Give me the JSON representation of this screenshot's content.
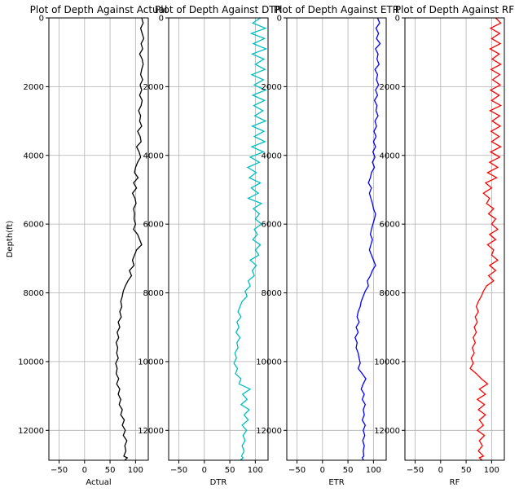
{
  "chart_data": [
    {
      "type": "line",
      "title": "Plot of Depth Against Actual",
      "xlabel": "Actual",
      "ylabel": "Depth(ft)",
      "xlim": [
        -70,
        125
      ],
      "ylim": [
        12870,
        0
      ],
      "xticks": [
        "−50",
        "0",
        "50",
        "100"
      ],
      "yticks": [
        "0",
        "2000",
        "4000",
        "6000",
        "8000",
        "10000",
        "12000"
      ],
      "grid": true,
      "color": "#000000",
      "series": [
        {
          "x": [
            112,
            115,
            110,
            113,
            116,
            111,
            114,
            108,
            113,
            115,
            112,
            110,
            114,
            109,
            112,
            108,
            113,
            111,
            106,
            110,
            108,
            112,
            104,
            109,
            111,
            102,
            107,
            110,
            104,
            100,
            98,
            105,
            96,
            102,
            94,
            99,
            101,
            96,
            98,
            97,
            100,
            96,
            104,
            108,
            112,
            102,
            98,
            94,
            97,
            88,
            92,
            85,
            80,
            76,
            74,
            71,
            73,
            69,
            72,
            66,
            69,
            64,
            67,
            62,
            65,
            63,
            66,
            61,
            64,
            62,
            67,
            63,
            69,
            66,
            71,
            68,
            74,
            71,
            78,
            74,
            80,
            76,
            83,
            79,
            81,
            77,
            84,
            80,
            79
          ],
          "y": [
            0,
            150,
            300,
            450,
            600,
            750,
            900,
            1050,
            1200,
            1350,
            1500,
            1650,
            1800,
            1950,
            2100,
            2250,
            2400,
            2550,
            2700,
            2850,
            3000,
            3150,
            3300,
            3450,
            3600,
            3750,
            3900,
            4050,
            4200,
            4350,
            4500,
            4650,
            4800,
            4950,
            5100,
            5250,
            5400,
            5550,
            5700,
            5850,
            6000,
            6150,
            6300,
            6450,
            6600,
            6750,
            6900,
            7050,
            7200,
            7350,
            7500,
            7650,
            7800,
            7950,
            8100,
            8250,
            8400,
            8550,
            8700,
            8850,
            9000,
            9150,
            9300,
            9450,
            9600,
            9750,
            9900,
            10050,
            10200,
            10350,
            10500,
            10650,
            10800,
            10950,
            11100,
            11250,
            11400,
            11550,
            11700,
            11850,
            12000,
            12150,
            12300,
            12450,
            12600,
            12750,
            12800,
            12850,
            12870
          ]
        }
      ]
    },
    {
      "type": "line",
      "title": "Plot of Depth Against DTR",
      "xlabel": "DTR",
      "ylabel": "",
      "xlim": [
        -70,
        125
      ],
      "ylim": [
        12870,
        0
      ],
      "xticks": [
        "−50",
        "0",
        "50",
        "100"
      ],
      "yticks": [
        "0",
        "2000",
        "4000",
        "6000",
        "8000",
        "10000",
        "12000"
      ],
      "grid": true,
      "color": "#00BFBF",
      "series": [
        {
          "x": [
            110,
            95,
            120,
            92,
            118,
            96,
            121,
            94,
            117,
            100,
            119,
            93,
            116,
            98,
            120,
            95,
            118,
            97,
            115,
            99,
            120,
            94,
            117,
            98,
            119,
            93,
            116,
            90,
            108,
            85,
            102,
            88,
            110,
            92,
            106,
            86,
            112,
            96,
            108,
            100,
            112,
            98,
            104,
            95,
            110,
            100,
            107,
            90,
            102,
            94,
            98,
            86,
            90,
            80,
            84,
            74,
            70,
            66,
            72,
            64,
            68,
            62,
            70,
            64,
            66,
            60,
            63,
            58,
            65,
            61,
            72,
            68,
            90,
            75,
            84,
            72,
            88,
            78,
            86,
            74,
            83,
            76,
            80,
            74,
            78,
            73,
            76,
            72,
            75
          ],
          "y": [
            0,
            150,
            300,
            450,
            600,
            750,
            900,
            1050,
            1200,
            1350,
            1500,
            1650,
            1800,
            1950,
            2100,
            2250,
            2400,
            2550,
            2700,
            2850,
            3000,
            3150,
            3300,
            3450,
            3600,
            3750,
            3900,
            4050,
            4200,
            4350,
            4500,
            4650,
            4800,
            4950,
            5100,
            5250,
            5400,
            5550,
            5700,
            5850,
            6000,
            6150,
            6300,
            6450,
            6600,
            6750,
            6900,
            7050,
            7200,
            7350,
            7500,
            7650,
            7800,
            7950,
            8100,
            8250,
            8400,
            8550,
            8700,
            8850,
            9000,
            9150,
            9300,
            9450,
            9600,
            9750,
            9900,
            10050,
            10200,
            10350,
            10500,
            10650,
            10800,
            10950,
            11100,
            11250,
            11400,
            11550,
            11700,
            11850,
            12000,
            12150,
            12300,
            12450,
            12600,
            12750,
            12800,
            12850,
            12870
          ]
        }
      ]
    },
    {
      "type": "line",
      "title": "Plot of Depth Against ETR",
      "xlabel": "ETR",
      "ylabel": "",
      "xlim": [
        -70,
        125
      ],
      "ylim": [
        12870,
        0
      ],
      "xticks": [
        "−50",
        "0",
        "50",
        "100"
      ],
      "yticks": [
        "0",
        "2000",
        "4000",
        "6000",
        "8000",
        "10000",
        "12000"
      ],
      "grid": true,
      "color": "#0000FF",
      "series": [
        {
          "x": [
            108,
            112,
            105,
            110,
            106,
            113,
            104,
            109,
            107,
            111,
            103,
            108,
            106,
            110,
            104,
            108,
            102,
            107,
            105,
            109,
            103,
            106,
            101,
            105,
            100,
            104,
            99,
            103,
            98,
            102,
            96,
            94,
            90,
            96,
            92,
            95,
            98,
            100,
            104,
            102,
            99,
            96,
            94,
            98,
            95,
            92,
            96,
            100,
            104,
            98,
            94,
            88,
            90,
            84,
            80,
            76,
            74,
            70,
            68,
            72,
            66,
            70,
            64,
            68,
            66,
            70,
            72,
            74,
            70,
            78,
            85,
            80,
            76,
            82,
            78,
            84,
            80,
            82,
            78,
            84,
            80,
            83,
            79,
            82,
            80,
            81,
            78,
            80,
            79
          ],
          "y": [
            0,
            150,
            300,
            450,
            600,
            750,
            900,
            1050,
            1200,
            1350,
            1500,
            1650,
            1800,
            1950,
            2100,
            2250,
            2400,
            2550,
            2700,
            2850,
            3000,
            3150,
            3300,
            3450,
            3600,
            3750,
            3900,
            4050,
            4200,
            4350,
            4500,
            4650,
            4800,
            4950,
            5100,
            5250,
            5400,
            5550,
            5700,
            5850,
            6000,
            6150,
            6300,
            6450,
            6600,
            6750,
            6900,
            7050,
            7200,
            7350,
            7500,
            7650,
            7800,
            7950,
            8100,
            8250,
            8400,
            8550,
            8700,
            8850,
            9000,
            9150,
            9300,
            9450,
            9600,
            9750,
            9900,
            10050,
            10200,
            10350,
            10500,
            10650,
            10800,
            10950,
            11100,
            11250,
            11400,
            11550,
            11700,
            11850,
            12000,
            12150,
            12300,
            12450,
            12600,
            12750,
            12800,
            12850,
            12870
          ]
        }
      ]
    },
    {
      "type": "line",
      "title": "Plot of Depth Against RF",
      "xlabel": "RF",
      "ylabel": "",
      "xlim": [
        -70,
        125
      ],
      "ylim": [
        12870,
        0
      ],
      "xticks": [
        "−50",
        "0",
        "50",
        "100"
      ],
      "yticks": [
        "0",
        "2000",
        "4000",
        "6000",
        "8000",
        "10000",
        "12000"
      ],
      "grid": true,
      "color": "#FF0000",
      "series": [
        {
          "x": [
            108,
            118,
            98,
            116,
            100,
            117,
            97,
            115,
            101,
            118,
            99,
            116,
            102,
            117,
            98,
            115,
            100,
            118,
            97,
            116,
            101,
            117,
            99,
            115,
            100,
            118,
            98,
            116,
            96,
            112,
            92,
            110,
            88,
            100,
            84,
            96,
            90,
            104,
            94,
            108,
            100,
            112,
            96,
            108,
            92,
            104,
            100,
            112,
            96,
            108,
            94,
            104,
            90,
            84,
            80,
            74,
            70,
            74,
            68,
            72,
            66,
            70,
            64,
            68,
            62,
            66,
            60,
            64,
            58,
            70,
            80,
            92,
            76,
            88,
            72,
            86,
            74,
            88,
            76,
            84,
            72,
            86,
            76,
            82,
            74,
            84,
            76,
            80,
            78
          ],
          "y": [
            0,
            150,
            300,
            450,
            600,
            750,
            900,
            1050,
            1200,
            1350,
            1500,
            1650,
            1800,
            1950,
            2100,
            2250,
            2400,
            2550,
            2700,
            2850,
            3000,
            3150,
            3300,
            3450,
            3600,
            3750,
            3900,
            4050,
            4200,
            4350,
            4500,
            4650,
            4800,
            4950,
            5100,
            5250,
            5400,
            5550,
            5700,
            5850,
            6000,
            6150,
            6300,
            6450,
            6600,
            6750,
            6900,
            7050,
            7200,
            7350,
            7500,
            7650,
            7800,
            7950,
            8100,
            8250,
            8400,
            8550,
            8700,
            8850,
            9000,
            9150,
            9300,
            9450,
            9600,
            9750,
            9900,
            10050,
            10200,
            10350,
            10500,
            10650,
            10800,
            10950,
            11100,
            11250,
            11400,
            11550,
            11700,
            11850,
            12000,
            12150,
            12300,
            12450,
            12600,
            12750,
            12800,
            12850,
            12870
          ]
        }
      ]
    }
  ]
}
